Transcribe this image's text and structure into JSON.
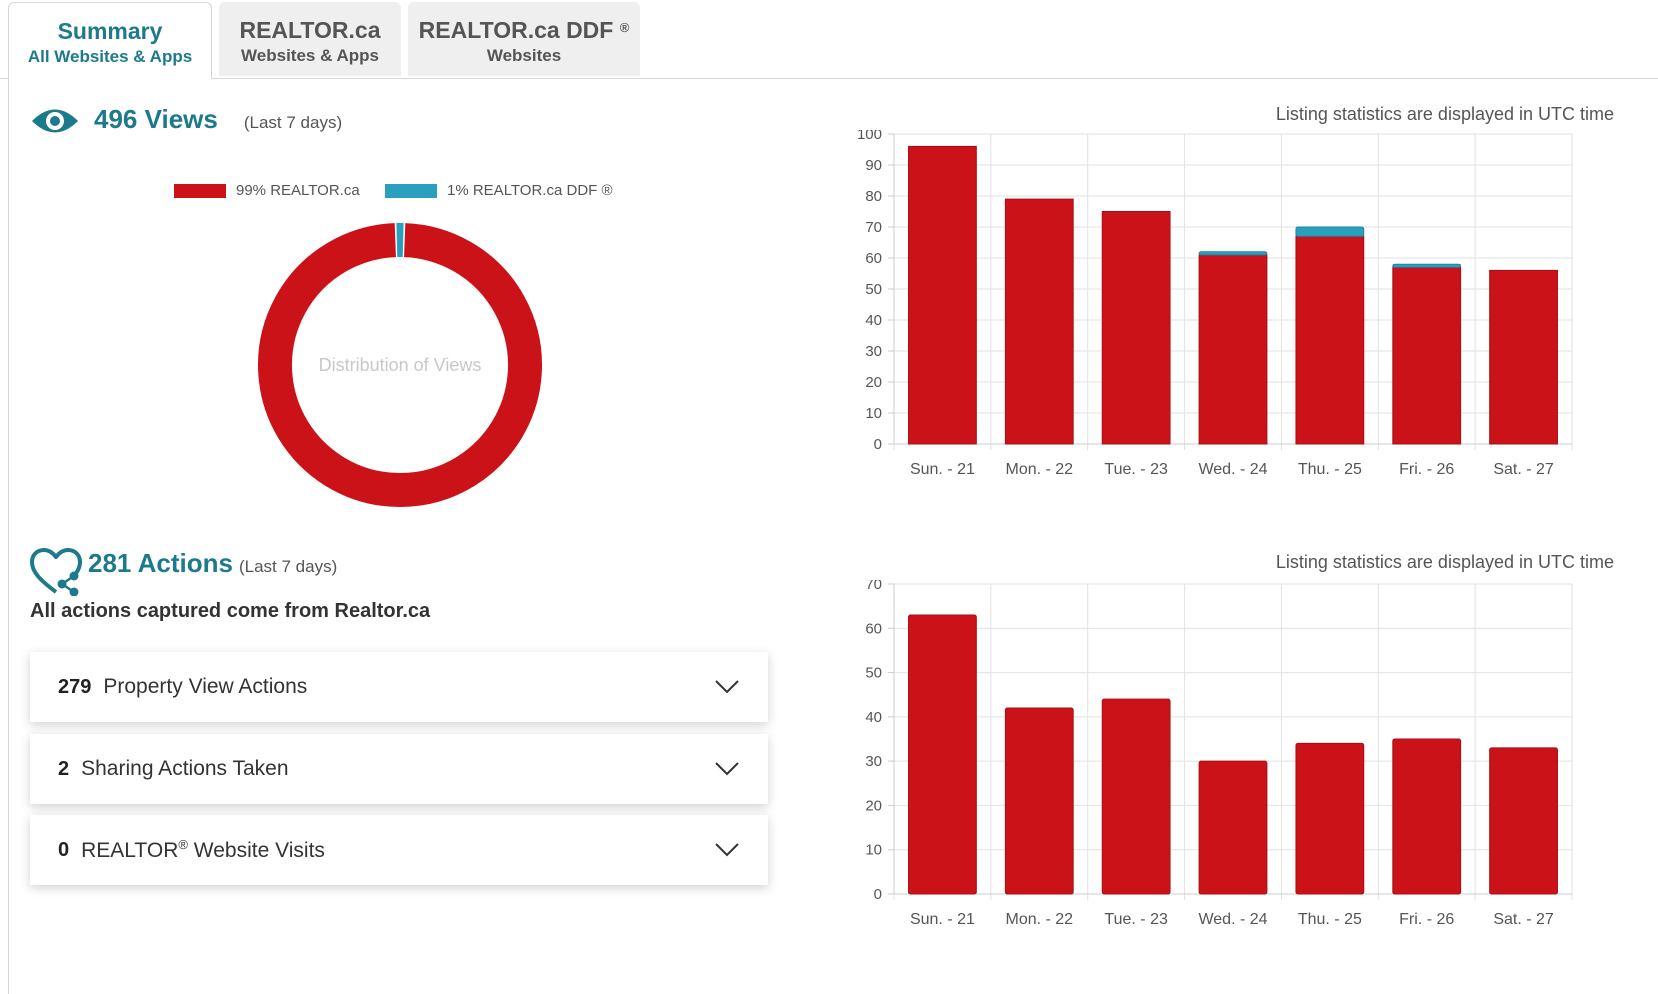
{
  "tabs": [
    {
      "title": "Summary",
      "subtitle": "All Websites & Apps",
      "active": true
    },
    {
      "title": "REALTOR.ca",
      "subtitle": "Websites & Apps",
      "active": false
    },
    {
      "title": "REALTOR.ca DDF",
      "title_sup": "®",
      "subtitle": "Websites",
      "active": false
    }
  ],
  "views": {
    "icon": "eye-icon",
    "count_label": "496 Views",
    "period": "(Last 7 days)",
    "utc_note": "Listing statistics are displayed in UTC time",
    "legend": [
      {
        "label": "99% REALTOR.ca",
        "color": "#cc1219"
      },
      {
        "label": "1% REALTOR.ca DDF ®",
        "color": "#2aa0bf"
      }
    ]
  },
  "actions": {
    "icon": "heart-share-icon",
    "count_label": "281 Actions",
    "period": "(Last 7 days)",
    "utc_note": "Listing statistics are displayed in UTC time",
    "subtitle": "All actions captured come from Realtor.ca",
    "items": [
      {
        "count": "279",
        "label": "Property View Actions"
      },
      {
        "count": "2",
        "label": "Sharing Actions Taken"
      },
      {
        "count": "0",
        "label": "REALTOR",
        "label_sup": "®",
        "label_rest": " Website Visits"
      }
    ]
  },
  "colors": {
    "realtor": "#cc1219",
    "ddf": "#2aa0bf",
    "accent": "#1c7a8c"
  },
  "chart_data": [
    {
      "type": "pie",
      "title": "Distribution of Views",
      "categories": [
        "REALTOR.ca",
        "REALTOR.ca DDF ®"
      ],
      "values": [
        99,
        1
      ],
      "colors": [
        "#cc1219",
        "#2aa0bf"
      ]
    },
    {
      "type": "bar",
      "stacked": true,
      "categories": [
        "Sun. - 21",
        "Mon. - 22",
        "Tue. - 23",
        "Wed. - 24",
        "Thu. - 25",
        "Fri. - 26",
        "Sat. - 27"
      ],
      "series": [
        {
          "values": [
            96,
            79,
            75,
            61,
            67,
            57,
            56
          ],
          "color": "#cc1219"
        },
        {
          "values": [
            0,
            0,
            0,
            1,
            3,
            1,
            0
          ],
          "color": "#2aa0bf"
        }
      ],
      "ylim": [
        0,
        100
      ],
      "yticks": [
        0,
        10,
        20,
        30,
        40,
        50,
        60,
        70,
        80,
        90,
        100
      ],
      "grid": true
    },
    {
      "type": "bar",
      "categories": [
        "Sun. - 21",
        "Mon. - 22",
        "Tue. - 23",
        "Wed. - 24",
        "Thu. - 25",
        "Fri. - 26",
        "Sat. - 27"
      ],
      "series": [
        {
          "values": [
            63,
            42,
            44,
            30,
            34,
            35,
            33
          ],
          "color": "#cc1219"
        }
      ],
      "ylim": [
        0,
        70
      ],
      "yticks": [
        0,
        10,
        20,
        30,
        40,
        50,
        60,
        70
      ],
      "grid": true
    }
  ]
}
